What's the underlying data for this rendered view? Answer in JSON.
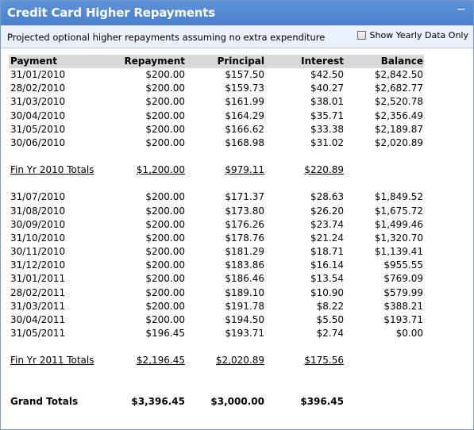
{
  "panel": {
    "title": "Credit Card Higher Repayments",
    "collapse_icon": "−"
  },
  "subbar": {
    "description": "Projected optional higher repayments assuming no extra expenditure",
    "toggle_label": "Show Yearly Data Only"
  },
  "table": {
    "headers": [
      "Payment",
      "Repayment",
      "Principal",
      "Interest",
      "Balance"
    ],
    "group1": [
      {
        "date": "31/01/2010",
        "repayment": "$200.00",
        "principal": "$157.50",
        "interest": "$42.50",
        "balance": "$2,842.50"
      },
      {
        "date": "28/02/2010",
        "repayment": "$200.00",
        "principal": "$159.73",
        "interest": "$40.27",
        "balance": "$2,682.77"
      },
      {
        "date": "31/03/2010",
        "repayment": "$200.00",
        "principal": "$161.99",
        "interest": "$38.01",
        "balance": "$2,520.78"
      },
      {
        "date": "30/04/2010",
        "repayment": "$200.00",
        "principal": "$164.29",
        "interest": "$35.71",
        "balance": "$2,356.49"
      },
      {
        "date": "31/05/2010",
        "repayment": "$200.00",
        "principal": "$166.62",
        "interest": "$33.38",
        "balance": "$2,189.87"
      },
      {
        "date": "30/06/2010",
        "repayment": "$200.00",
        "principal": "$168.98",
        "interest": "$31.02",
        "balance": "$2,020.89"
      }
    ],
    "total1": {
      "label": "Fin Yr 2010 Totals",
      "repayment": "$1,200.00",
      "principal": "$979.11",
      "interest": "$220.89"
    },
    "group2": [
      {
        "date": "31/07/2010",
        "repayment": "$200.00",
        "principal": "$171.37",
        "interest": "$28.63",
        "balance": "$1,849.52"
      },
      {
        "date": "31/08/2010",
        "repayment": "$200.00",
        "principal": "$173.80",
        "interest": "$26.20",
        "balance": "$1,675.72"
      },
      {
        "date": "30/09/2010",
        "repayment": "$200.00",
        "principal": "$176.26",
        "interest": "$23.74",
        "balance": "$1,499.46"
      },
      {
        "date": "31/10/2010",
        "repayment": "$200.00",
        "principal": "$178.76",
        "interest": "$21.24",
        "balance": "$1,320.70"
      },
      {
        "date": "30/11/2010",
        "repayment": "$200.00",
        "principal": "$181.29",
        "interest": "$18.71",
        "balance": "$1,139.41"
      },
      {
        "date": "31/12/2010",
        "repayment": "$200.00",
        "principal": "$183.86",
        "interest": "$16.14",
        "balance": "$955.55"
      },
      {
        "date": "31/01/2011",
        "repayment": "$200.00",
        "principal": "$186.46",
        "interest": "$13.54",
        "balance": "$769.09"
      },
      {
        "date": "28/02/2011",
        "repayment": "$200.00",
        "principal": "$189.10",
        "interest": "$10.90",
        "balance": "$579.99"
      },
      {
        "date": "31/03/2011",
        "repayment": "$200.00",
        "principal": "$191.78",
        "interest": "$8.22",
        "balance": "$388.21"
      },
      {
        "date": "30/04/2011",
        "repayment": "$200.00",
        "principal": "$194.50",
        "interest": "$5.50",
        "balance": "$193.71"
      },
      {
        "date": "31/05/2011",
        "repayment": "$196.45",
        "principal": "$193.71",
        "interest": "$2.74",
        "balance": "$0.00"
      }
    ],
    "total2": {
      "label": "Fin Yr 2011 Totals",
      "repayment": "$2,196.45",
      "principal": "$2,020.89",
      "interest": "$175.56"
    },
    "grand": {
      "label": "Grand Totals",
      "repayment": "$3,396.45",
      "principal": "$3,000.00",
      "interest": "$396.45"
    }
  },
  "colors": {
    "title_bar": "#5087d4",
    "header_row": "#d8d8d8",
    "sub_bar": "#eaf1fb"
  }
}
